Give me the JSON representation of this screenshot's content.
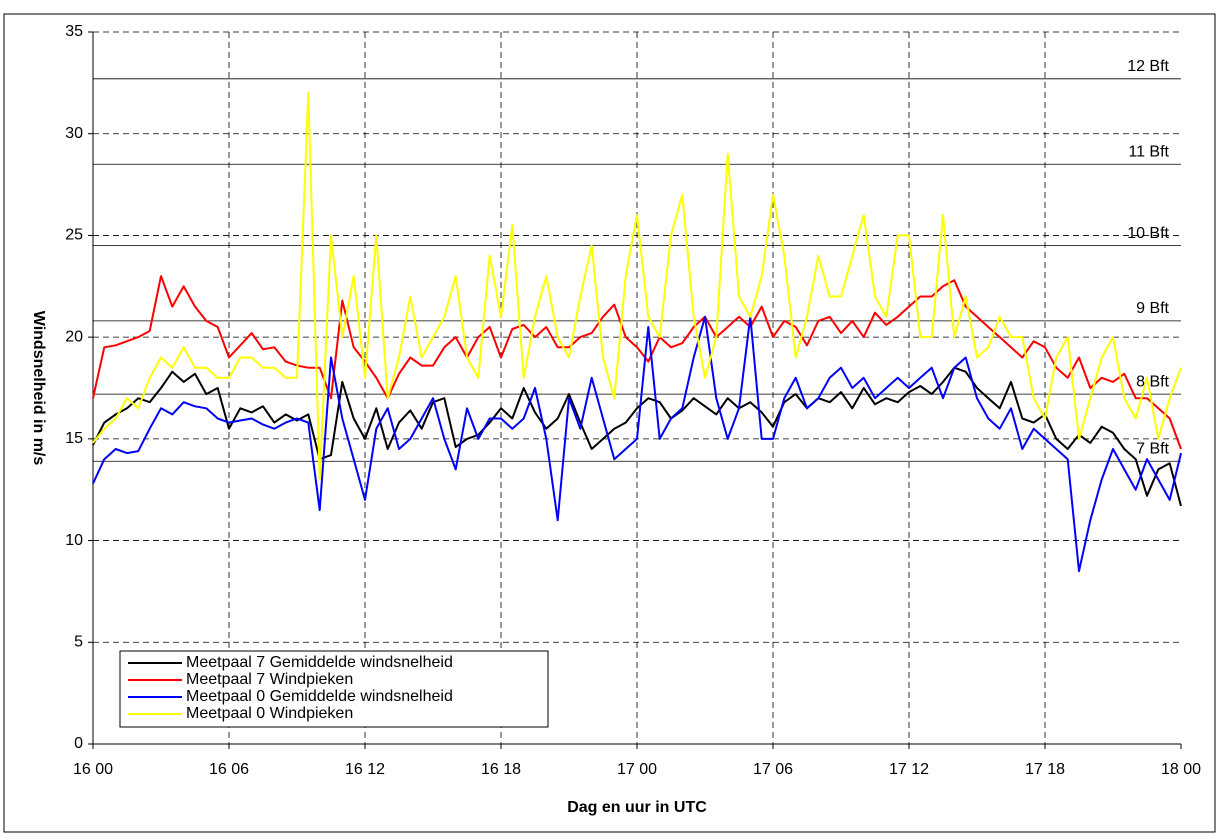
{
  "chart_data": {
    "type": "line",
    "x_label": "Dag en uur in UTC",
    "y_label": "Windsnelheid in m/s",
    "x": [
      0,
      0.5,
      1,
      1.5,
      2,
      2.5,
      3,
      3.5,
      4,
      4.5,
      5,
      5.5,
      6,
      6.5,
      7,
      7.5,
      8,
      8.5,
      9,
      9.5,
      10,
      10.5,
      11,
      11.5,
      12,
      12.5,
      13,
      13.5,
      14,
      14.5,
      15,
      15.5,
      16,
      16.5,
      17,
      17.5,
      18,
      18.5,
      19,
      19.5,
      20,
      20.5,
      21,
      21.5,
      22,
      22.5,
      23,
      23.5,
      24,
      24.5,
      25,
      25.5,
      26,
      26.5,
      27,
      27.5,
      28,
      28.5,
      29,
      29.5,
      30,
      30.5,
      31,
      31.5,
      32,
      32.5,
      33,
      33.5,
      34,
      34.5,
      35,
      35.5,
      36,
      36.5,
      37,
      37.5,
      38,
      38.5,
      39,
      39.5,
      40,
      40.5,
      41,
      41.5,
      42,
      42.5,
      43,
      43.5,
      44,
      44.5,
      45,
      45.5,
      46,
      46.5,
      47,
      47.5,
      48
    ],
    "xlim": [
      0,
      48
    ],
    "xticks": [
      {
        "value": 0,
        "label": "16 00"
      },
      {
        "value": 6,
        "label": "16 06"
      },
      {
        "value": 12,
        "label": "16 12"
      },
      {
        "value": 18,
        "label": "16 18"
      },
      {
        "value": 24,
        "label": "17 00"
      },
      {
        "value": 30,
        "label": "17 06"
      },
      {
        "value": 36,
        "label": "17 12"
      },
      {
        "value": 42,
        "label": "17 18"
      },
      {
        "value": 48,
        "label": "18 00"
      }
    ],
    "ylim": [
      0,
      35
    ],
    "yticks": [
      0,
      5,
      10,
      15,
      20,
      25,
      30,
      35
    ],
    "grid": true,
    "legend": "lower left",
    "annotations": [
      {
        "value": 13.9,
        "label": "7 Bft"
      },
      {
        "value": 17.2,
        "label": "8 Bft"
      },
      {
        "value": 20.8,
        "label": "9 Bft"
      },
      {
        "value": 24.5,
        "label": "10 Bft"
      },
      {
        "value": 28.5,
        "label": "11 Bft"
      },
      {
        "value": 32.7,
        "label": "12 Bft"
      }
    ],
    "series": [
      {
        "name": "Meetpaal 7 Gemiddelde windsnelheid",
        "color": "#000000",
        "values": [
          14.7,
          15.8,
          16.2,
          16.5,
          17.0,
          16.8,
          17.5,
          18.3,
          17.8,
          18.2,
          17.2,
          17.5,
          15.5,
          16.5,
          16.3,
          16.6,
          15.8,
          16.2,
          15.9,
          16.2,
          14.0,
          14.2,
          17.8,
          16.0,
          15.0,
          16.5,
          14.5,
          15.8,
          16.4,
          15.5,
          16.8,
          17.0,
          14.6,
          15.0,
          15.2,
          15.8,
          16.5,
          16.0,
          17.5,
          16.3,
          15.5,
          16.0,
          17.2,
          15.8,
          14.5,
          15.0,
          15.5,
          15.8,
          16.5,
          17.0,
          16.8,
          16.0,
          16.4,
          17.0,
          16.6,
          16.2,
          17.0,
          16.5,
          16.8,
          16.3,
          15.6,
          16.8,
          17.2,
          16.5,
          17.0,
          16.8,
          17.3,
          16.5,
          17.5,
          16.7,
          17.0,
          16.8,
          17.3,
          17.6,
          17.2,
          17.8,
          18.5,
          18.3,
          17.5,
          17.0,
          16.5,
          17.8,
          16.0,
          15.8,
          16.2,
          15.0,
          14.5,
          15.2,
          14.8,
          15.6,
          15.3,
          14.5,
          14.0,
          12.2,
          13.5,
          13.8,
          11.7
        ]
      },
      {
        "name": "Meetpaal 7 Windpieken",
        "color": "#ff0000",
        "values": [
          17.0,
          19.5,
          19.6,
          19.8,
          20.0,
          20.3,
          23.0,
          21.5,
          22.5,
          21.5,
          20.8,
          20.5,
          19.0,
          19.6,
          20.2,
          19.4,
          19.5,
          18.8,
          18.6,
          18.5,
          18.5,
          17.0,
          21.8,
          19.5,
          18.8,
          18.0,
          17.0,
          18.2,
          19.0,
          18.6,
          18.6,
          19.5,
          20.0,
          19.0,
          20.0,
          20.5,
          19.0,
          20.4,
          20.6,
          20.0,
          20.5,
          19.5,
          19.5,
          20.0,
          20.2,
          21.0,
          21.6,
          20.0,
          19.5,
          18.8,
          20.0,
          19.5,
          19.7,
          20.5,
          21.0,
          20.0,
          20.5,
          21.0,
          20.5,
          21.5,
          20.0,
          20.8,
          20.5,
          19.6,
          20.8,
          21.0,
          20.2,
          20.8,
          20.0,
          21.2,
          20.6,
          21.0,
          21.5,
          22.0,
          22.0,
          22.5,
          22.8,
          21.5,
          21.0,
          20.5,
          20.0,
          19.5,
          19.0,
          19.8,
          19.5,
          18.5,
          18.0,
          19.0,
          17.5,
          18.0,
          17.8,
          18.2,
          17.0,
          17.0,
          16.5,
          16.0,
          14.5
        ]
      },
      {
        "name": "Meetpaal 0 Gemiddelde windsnelheid",
        "color": "#0000ff",
        "values": [
          12.8,
          14.0,
          14.5,
          14.3,
          14.4,
          15.5,
          16.5,
          16.2,
          16.8,
          16.6,
          16.5,
          16.0,
          15.8,
          15.9,
          16.0,
          15.7,
          15.5,
          15.8,
          16.0,
          15.8,
          11.5,
          19.0,
          16.0,
          14.0,
          12.0,
          15.5,
          16.5,
          14.5,
          15.0,
          16.0,
          17.0,
          15.0,
          13.5,
          16.5,
          15.0,
          16.0,
          16.0,
          15.5,
          16.0,
          17.5,
          15.0,
          11.0,
          17.0,
          15.5,
          18.0,
          16.0,
          14.0,
          14.5,
          15.0,
          20.5,
          15.0,
          16.0,
          16.5,
          19.0,
          21.0,
          17.0,
          15.0,
          16.5,
          21.0,
          15.0,
          15.0,
          17.0,
          18.0,
          16.5,
          17.0,
          18.0,
          18.5,
          17.5,
          18.0,
          17.0,
          17.5,
          18.0,
          17.5,
          18.0,
          18.5,
          17.0,
          18.5,
          19.0,
          17.0,
          16.0,
          15.5,
          16.5,
          14.5,
          15.5,
          15.0,
          14.5,
          14.0,
          8.5,
          11.0,
          13.0,
          14.5,
          13.5,
          12.5,
          14.0,
          13.0,
          12.0,
          14.3
        ]
      },
      {
        "name": "Meetpaal 0 Windpieken",
        "color": "#ffff00",
        "values": [
          14.8,
          15.5,
          16.0,
          17.0,
          16.5,
          18.0,
          19.0,
          18.5,
          19.5,
          18.5,
          18.5,
          18.0,
          18.0,
          19.0,
          19.0,
          18.5,
          18.5,
          18.0,
          18.0,
          32.0,
          13.0,
          25.0,
          20.0,
          23.0,
          18.0,
          25.0,
          17.0,
          19.0,
          22.0,
          19.0,
          20.0,
          21.0,
          23.0,
          19.0,
          18.0,
          24.0,
          21.0,
          25.5,
          18.0,
          21.0,
          23.0,
          20.0,
          19.0,
          22.0,
          24.5,
          19.0,
          17.0,
          23.0,
          26.0,
          21.0,
          20.0,
          25.0,
          27.0,
          21.0,
          18.0,
          20.0,
          29.0,
          22.0,
          21.0,
          23.0,
          27.0,
          24.0,
          19.0,
          21.0,
          24.0,
          22.0,
          22.0,
          24.0,
          26.0,
          22.0,
          21.0,
          25.0,
          25.0,
          20.0,
          20.0,
          26.0,
          20.0,
          22.0,
          19.0,
          19.5,
          21.0,
          20.0,
          20.0,
          17.0,
          16.0,
          19.0,
          20.0,
          15.0,
          17.0,
          19.0,
          20.0,
          17.0,
          16.0,
          18.0,
          15.0,
          17.0,
          18.5
        ]
      }
    ]
  }
}
